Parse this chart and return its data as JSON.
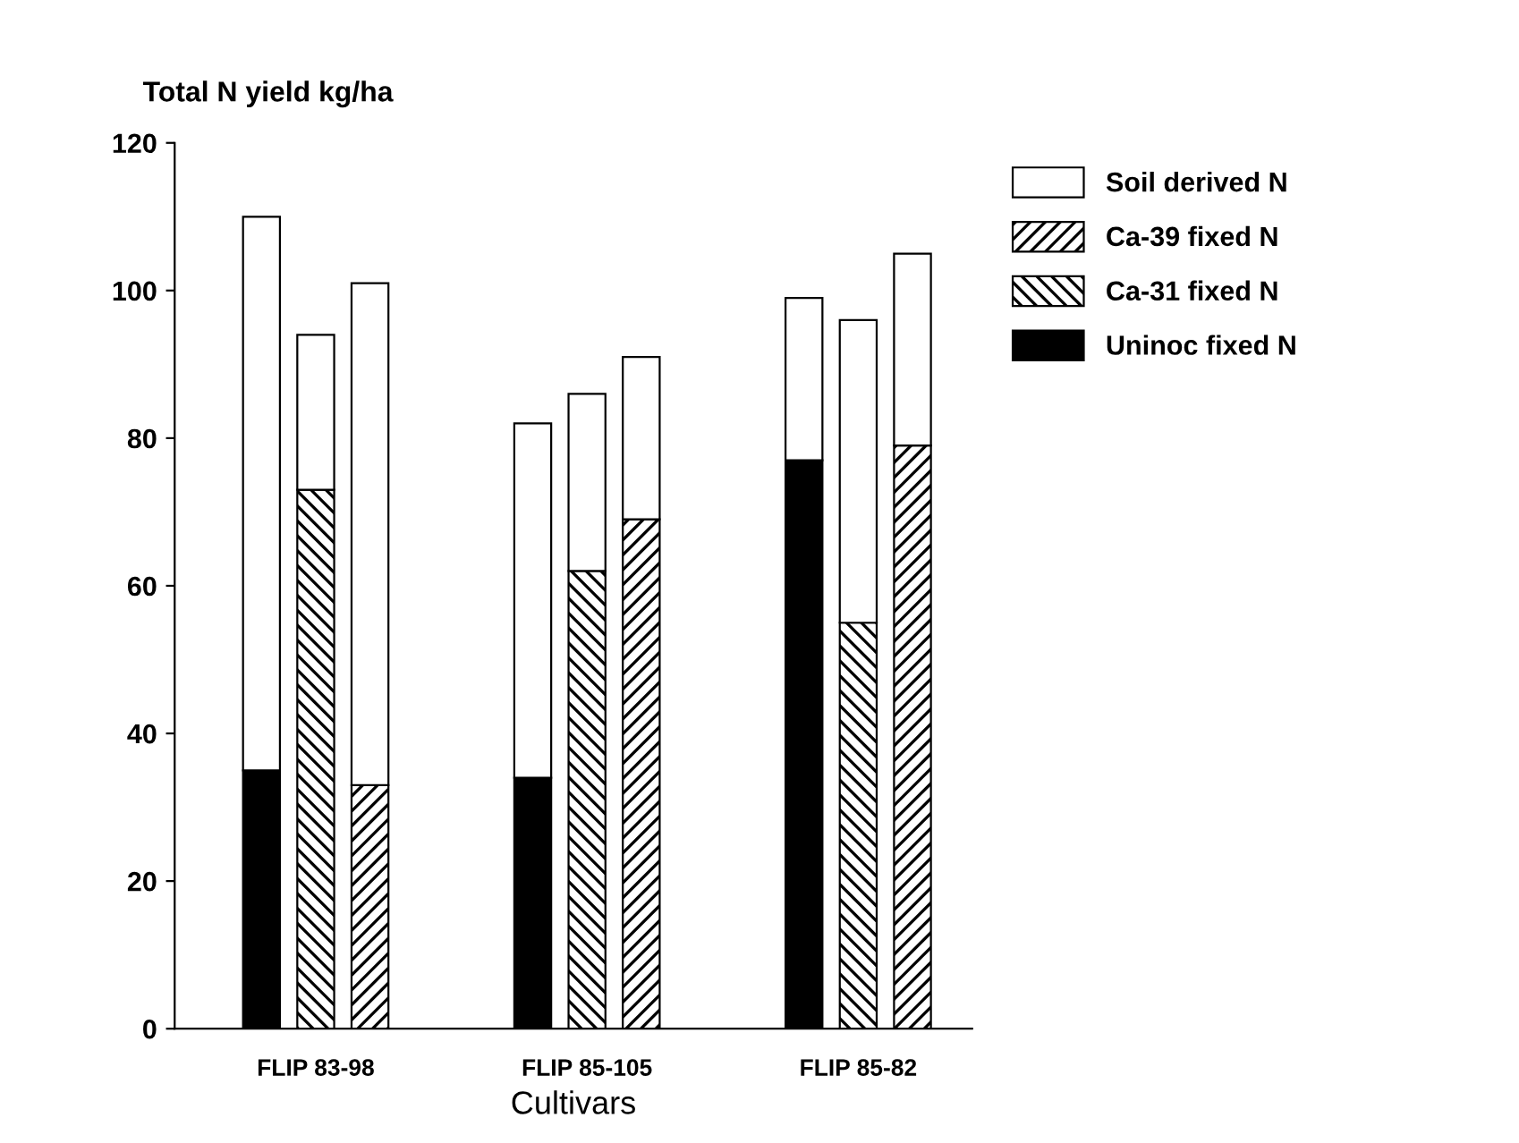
{
  "chart_data": {
    "type": "bar",
    "stacked": true,
    "ylabel": "Total N yield kg/ha",
    "xlabel": "Cultivars",
    "categories": [
      null,
      "FLIP 83-98",
      null,
      null,
      null,
      null,
      "FLIP 85-105",
      null,
      null,
      null,
      null,
      "FLIP 85-82",
      null
    ],
    "series": [
      {
        "name": "Uninoc fixed N",
        "color": "#000000",
        "values": [
          35,
          null,
          null,
          null,
          null,
          34,
          null,
          null,
          null,
          null,
          77,
          null,
          null
        ]
      },
      {
        "name": "Ca-31 fixed N",
        "color": "#000000",
        "values": [
          null,
          73,
          null,
          null,
          null,
          null,
          62,
          null,
          null,
          null,
          null,
          55,
          null
        ]
      },
      {
        "name": "Ca-39 fixed N",
        "color": "#000000",
        "values": [
          null,
          null,
          33,
          null,
          null,
          null,
          null,
          69,
          null,
          null,
          null,
          null,
          79
        ]
      },
      {
        "name": "Soil derived N",
        "color": "#ffffff",
        "values": [
          75,
          21,
          68,
          null,
          null,
          48,
          24,
          22,
          null,
          null,
          22,
          41,
          26
        ]
      }
    ],
    "ylim": [
      0,
      120
    ],
    "yticks": [
      0,
      20,
      40,
      60,
      80,
      100,
      120
    ],
    "legend": "top right",
    "grid": false
  }
}
